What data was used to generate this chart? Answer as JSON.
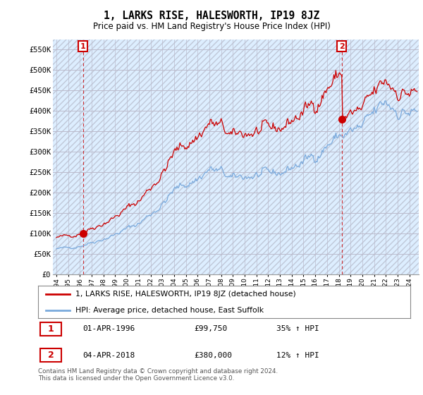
{
  "title": "1, LARKS RISE, HALESWORTH, IP19 8JZ",
  "subtitle": "Price paid vs. HM Land Registry's House Price Index (HPI)",
  "legend_label_red": "1, LARKS RISE, HALESWORTH, IP19 8JZ (detached house)",
  "legend_label_blue": "HPI: Average price, detached house, East Suffolk",
  "annotation1_date": "01-APR-1996",
  "annotation1_price": "£99,750",
  "annotation1_hpi": "35% ↑ HPI",
  "annotation2_date": "04-APR-2018",
  "annotation2_price": "£380,000",
  "annotation2_hpi": "12% ↑ HPI",
  "footnote": "Contains HM Land Registry data © Crown copyright and database right 2024.\nThis data is licensed under the Open Government Licence v3.0.",
  "ylim": [
    0,
    575000
  ],
  "yticks": [
    0,
    50000,
    100000,
    150000,
    200000,
    250000,
    300000,
    350000,
    400000,
    450000,
    500000,
    550000
  ],
  "ytick_labels": [
    "£0",
    "£50K",
    "£100K",
    "£150K",
    "£200K",
    "£250K",
    "£300K",
    "£350K",
    "£400K",
    "£450K",
    "£500K",
    "£550K"
  ],
  "red_color": "#cc0000",
  "blue_color": "#7aaadd",
  "grid_color": "#bbbbcc",
  "background_color": "#ffffff",
  "plot_bg_color": "#ddeeff",
  "marker1_x": 1996.25,
  "marker1_y": 99750,
  "marker2_x": 2018.25,
  "marker2_y": 380000,
  "vline1_x": 1996.25,
  "vline2_x": 2018.25,
  "xmin": 1993.7,
  "xmax": 2024.8
}
